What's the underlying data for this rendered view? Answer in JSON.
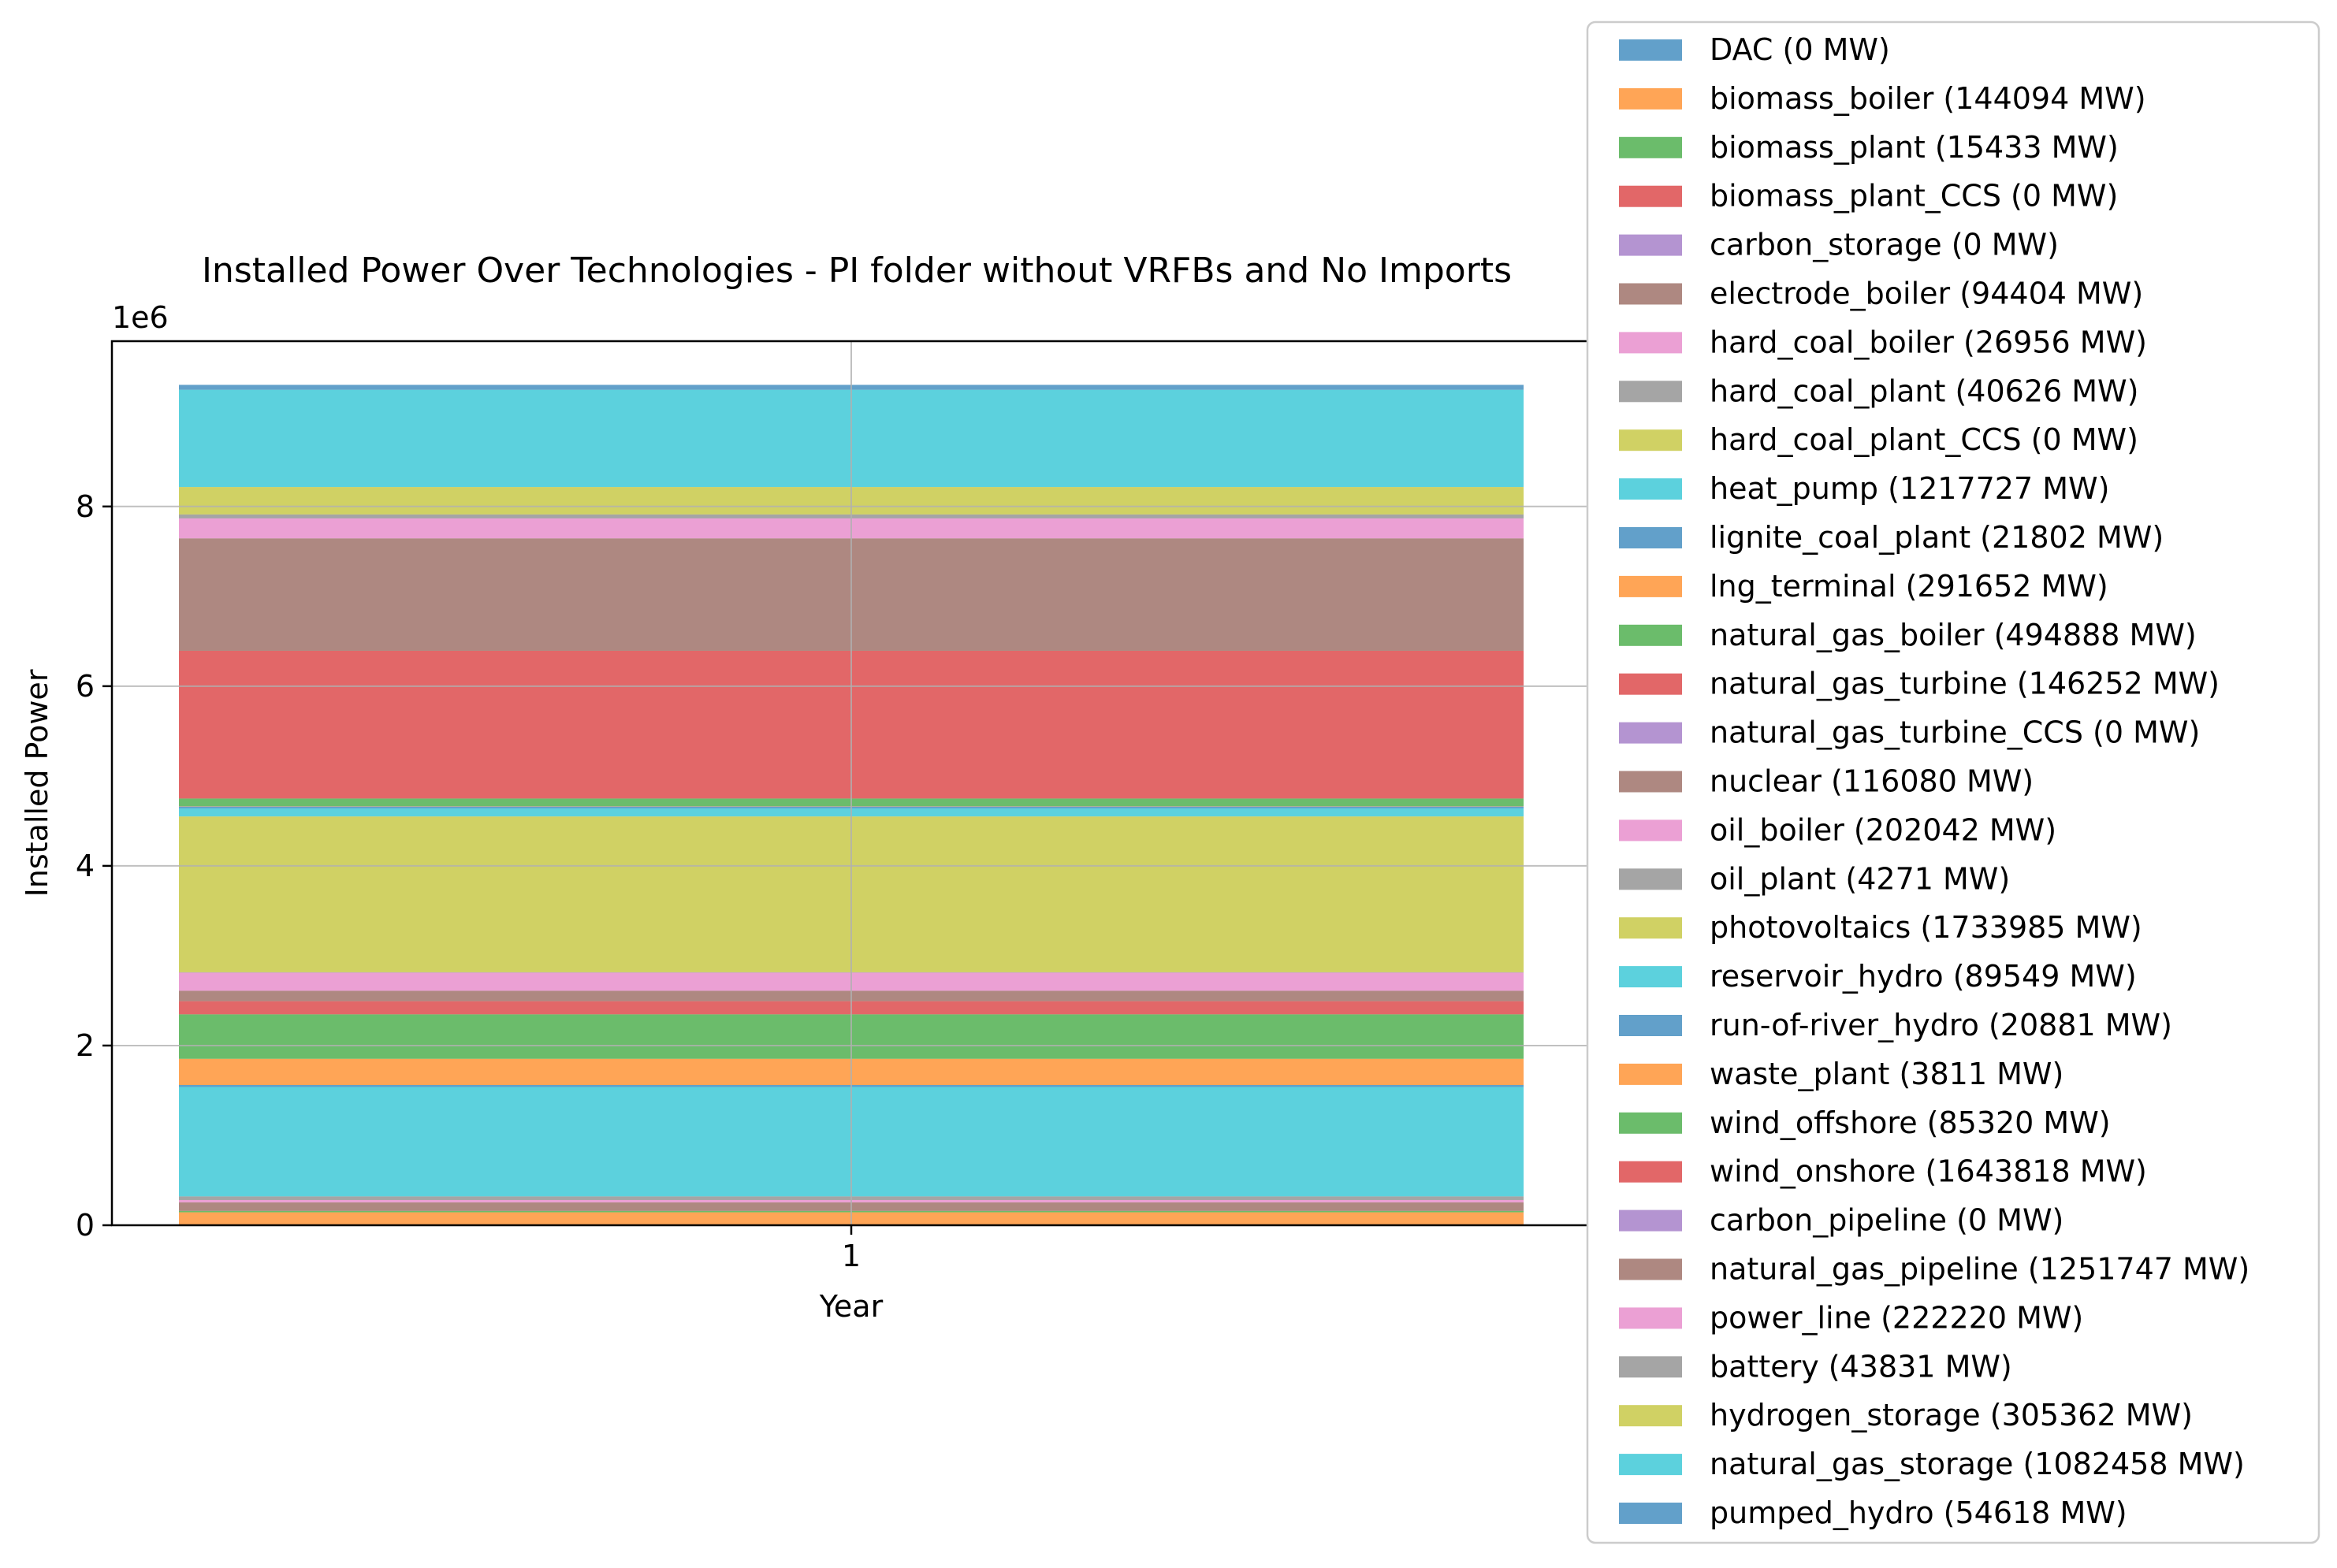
{
  "chart_data": {
    "type": "area",
    "title": "Installed Power Over Technologies - PI folder without VRFBs and No Imports",
    "xlabel": "Year",
    "ylabel": "Installed Power",
    "offset_label": "1e6",
    "x": [
      1
    ],
    "x_ticks": [
      "1"
    ],
    "y_ticks": [
      0,
      2,
      4,
      6,
      8
    ],
    "y_tick_labels": [
      "0",
      "2",
      "4",
      "6",
      "8"
    ],
    "ylim": [
      0,
      9840000
    ],
    "grid": true,
    "legend_position": "right",
    "series": [
      {
        "name": "DAC (0 MW)",
        "value": 0,
        "color": "#1f77b4"
      },
      {
        "name": "biomass_boiler (144094 MW)",
        "value": 144094,
        "color": "#ff7f0e"
      },
      {
        "name": "biomass_plant (15433 MW)",
        "value": 15433,
        "color": "#2ca02c"
      },
      {
        "name": "biomass_plant_CCS (0 MW)",
        "value": 0,
        "color": "#d62728"
      },
      {
        "name": "carbon_storage (0 MW)",
        "value": 0,
        "color": "#9467bd"
      },
      {
        "name": "electrode_boiler (94404 MW)",
        "value": 94404,
        "color": "#8c564b"
      },
      {
        "name": "hard_coal_boiler (26956 MW)",
        "value": 26956,
        "color": "#e377c2"
      },
      {
        "name": "hard_coal_plant (40626 MW)",
        "value": 40626,
        "color": "#7f7f7f"
      },
      {
        "name": "hard_coal_plant_CCS (0 MW)",
        "value": 0,
        "color": "#bcbd22"
      },
      {
        "name": "heat_pump (1217727 MW)",
        "value": 1217727,
        "color": "#17becf"
      },
      {
        "name": "lignite_coal_plant (21802 MW)",
        "value": 21802,
        "color": "#1f77b4"
      },
      {
        "name": "lng_terminal (291652 MW)",
        "value": 291652,
        "color": "#ff7f0e"
      },
      {
        "name": "natural_gas_boiler (494888 MW)",
        "value": 494888,
        "color": "#2ca02c"
      },
      {
        "name": "natural_gas_turbine (146252 MW)",
        "value": 146252,
        "color": "#d62728"
      },
      {
        "name": "natural_gas_turbine_CCS (0 MW)",
        "value": 0,
        "color": "#9467bd"
      },
      {
        "name": "nuclear (116080 MW)",
        "value": 116080,
        "color": "#8c564b"
      },
      {
        "name": "oil_boiler (202042 MW)",
        "value": 202042,
        "color": "#e377c2"
      },
      {
        "name": "oil_plant (4271 MW)",
        "value": 4271,
        "color": "#7f7f7f"
      },
      {
        "name": "photovoltaics (1733985 MW)",
        "value": 1733985,
        "color": "#bcbd22"
      },
      {
        "name": "reservoir_hydro (89549 MW)",
        "value": 89549,
        "color": "#17becf"
      },
      {
        "name": "run-of-river_hydro (20881 MW)",
        "value": 20881,
        "color": "#1f77b4"
      },
      {
        "name": "waste_plant (3811 MW)",
        "value": 3811,
        "color": "#ff7f0e"
      },
      {
        "name": "wind_offshore (85320 MW)",
        "value": 85320,
        "color": "#2ca02c"
      },
      {
        "name": "wind_onshore (1643818 MW)",
        "value": 1643818,
        "color": "#d62728"
      },
      {
        "name": "carbon_pipeline (0 MW)",
        "value": 0,
        "color": "#9467bd"
      },
      {
        "name": "natural_gas_pipeline (1251747 MW)",
        "value": 1251747,
        "color": "#8c564b"
      },
      {
        "name": "power_line (222220 MW)",
        "value": 222220,
        "color": "#e377c2"
      },
      {
        "name": "battery (43831 MW)",
        "value": 43831,
        "color": "#7f7f7f"
      },
      {
        "name": "hydrogen_storage (305362 MW)",
        "value": 305362,
        "color": "#bcbd22"
      },
      {
        "name": "natural_gas_storage (1082458 MW)",
        "value": 1082458,
        "color": "#17becf"
      },
      {
        "name": "pumped_hydro (54618 MW)",
        "value": 54618,
        "color": "#1f77b4"
      }
    ]
  }
}
